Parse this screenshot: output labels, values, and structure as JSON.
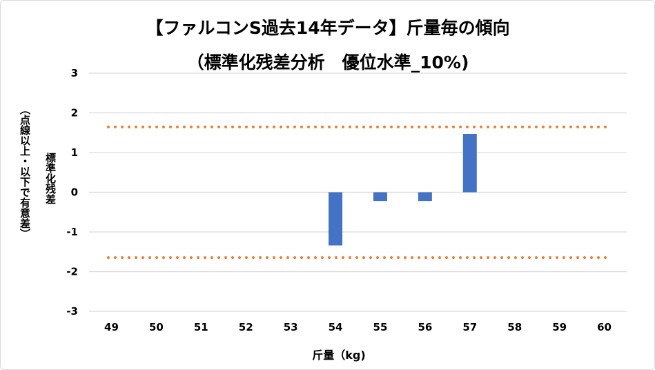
{
  "chart_data": {
    "type": "bar",
    "title": "【ファルコンS過去14年データ】斤量毎の傾向",
    "subtitle": "（標準化残差分析　優位水準_10%)",
    "xlabel": "斤量（kg)",
    "ylabel": "標準化残差",
    "ylabel_note": "（点線以上・以下で有意差）",
    "categories": [
      "49",
      "50",
      "51",
      "52",
      "53",
      "54",
      "55",
      "56",
      "57",
      "58",
      "59",
      "60"
    ],
    "values": [
      null,
      null,
      null,
      null,
      null,
      -1.34,
      -0.22,
      -0.22,
      1.47,
      null,
      null,
      null
    ],
    "ylim": [
      -3,
      3
    ],
    "yticks": [
      "3",
      "2",
      "1",
      "0",
      "-1",
      "-2",
      "-3"
    ],
    "ytick_values": [
      3,
      2,
      1,
      0,
      -1,
      -2,
      -3
    ],
    "threshold_lines": [
      1.645,
      -1.645
    ],
    "grid": true,
    "legend": "none",
    "colors": {
      "bar": "#4472C4",
      "threshold": "#ED7D31",
      "grid": "#D9D9D9"
    }
  }
}
